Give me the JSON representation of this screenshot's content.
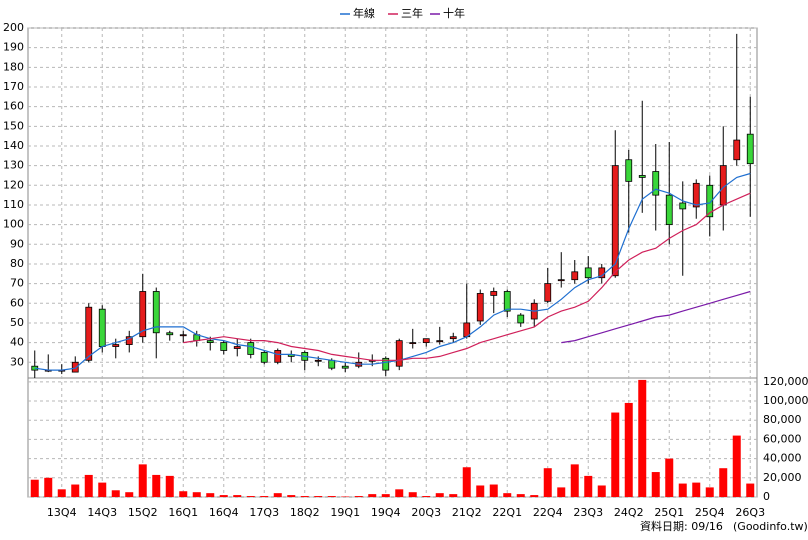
{
  "chart_data": {
    "type": "candlestick",
    "categories": [
      null,
      null,
      "13Q4",
      null,
      null,
      "14Q3",
      null,
      null,
      "15Q2",
      null,
      null,
      "16Q1",
      null,
      null,
      "16Q4",
      null,
      null,
      "17Q3",
      null,
      null,
      "18Q2",
      null,
      null,
      "19Q1",
      null,
      null,
      "19Q4",
      null,
      null,
      "20Q3",
      null,
      null,
      "21Q2",
      null,
      null,
      "22Q1",
      null,
      null,
      "22Q4",
      null,
      null,
      "23Q3",
      null,
      null,
      "24Q2",
      null,
      null,
      "25Q1",
      null,
      null,
      "25Q4",
      null,
      null,
      "26Q3"
    ],
    "open": [
      28,
      26,
      26,
      25,
      31,
      57,
      38,
      39,
      43,
      66,
      45,
      44,
      44,
      41,
      40,
      37,
      40,
      35,
      30,
      34,
      35,
      31,
      31,
      28,
      28,
      31,
      32,
      28,
      40,
      40,
      41,
      42,
      43,
      51,
      64,
      66,
      54,
      52,
      61,
      72,
      72,
      78,
      73,
      74,
      133,
      125,
      127,
      115,
      111,
      109,
      120,
      110,
      133,
      146
    ],
    "high": [
      36,
      34,
      29,
      33,
      60,
      59,
      42,
      46,
      75,
      68,
      46,
      46,
      46,
      43,
      41,
      42,
      42,
      36,
      37,
      36,
      36,
      33,
      32,
      30,
      35,
      34,
      33,
      42,
      47,
      42,
      48,
      45,
      70,
      67,
      68,
      67,
      55,
      62,
      78,
      86,
      82,
      84,
      80,
      148,
      138,
      163,
      141,
      142,
      122,
      123,
      125,
      150,
      197,
      165
    ],
    "low": [
      22,
      25,
      24,
      25,
      30,
      35,
      32,
      35,
      40,
      32,
      41,
      40,
      38,
      36,
      34,
      33,
      32,
      29,
      29,
      30,
      26,
      28,
      26,
      25,
      27,
      28,
      23,
      26,
      37,
      38,
      39,
      40,
      42,
      49,
      55,
      53,
      48,
      48,
      60,
      68,
      70,
      70,
      70,
      73,
      96,
      106,
      97,
      90,
      74,
      103,
      94,
      97,
      130,
      104
    ],
    "close": [
      26,
      26,
      26,
      30,
      58,
      38,
      39,
      43,
      66,
      45,
      44,
      44,
      41,
      40,
      36,
      38,
      34,
      30,
      36,
      33,
      31,
      31,
      27,
      27,
      30,
      31,
      26,
      41,
      40,
      42,
      41,
      43,
      50,
      65,
      66,
      56,
      50,
      60,
      70,
      72,
      76,
      73,
      78,
      130,
      122,
      124,
      115,
      100,
      108,
      121,
      104,
      130,
      143,
      131
    ],
    "up_color": "#e51c1c",
    "down_color": "#3ad63a",
    "series": [
      {
        "name": "年線",
        "color": "#1f6fd0",
        "values": [
          27,
          26,
          26,
          27,
          33,
          38,
          40,
          42,
          46,
          48,
          48,
          48,
          44,
          42,
          41,
          39,
          38,
          36,
          34,
          34,
          33,
          32,
          31,
          30,
          29,
          29,
          30,
          31,
          33,
          35,
          38,
          40,
          43,
          48,
          54,
          57,
          57,
          56,
          57,
          62,
          68,
          72,
          74,
          80,
          98,
          113,
          118,
          116,
          112,
          110,
          111,
          119,
          124,
          126
        ]
      },
      {
        "name": "三年",
        "color": "#d0205a",
        "values": [
          null,
          null,
          null,
          null,
          null,
          null,
          null,
          null,
          null,
          null,
          null,
          40,
          41,
          42,
          43,
          42,
          41,
          41,
          40,
          38,
          37,
          36,
          34,
          33,
          32,
          31,
          31,
          31,
          32,
          32,
          33,
          35,
          37,
          40,
          42,
          44,
          46,
          48,
          53,
          56,
          58,
          61,
          68,
          76,
          82,
          86,
          88,
          93,
          97,
          100,
          106,
          110,
          113,
          116
        ]
      },
      {
        "name": "十年",
        "color": "#7a1aa8",
        "values": [
          null,
          null,
          null,
          null,
          null,
          null,
          null,
          null,
          null,
          null,
          null,
          null,
          null,
          null,
          null,
          null,
          null,
          null,
          null,
          null,
          null,
          null,
          null,
          null,
          null,
          null,
          null,
          null,
          null,
          null,
          null,
          null,
          null,
          null,
          null,
          null,
          null,
          null,
          null,
          40,
          41,
          43,
          45,
          47,
          49,
          51,
          53,
          54,
          56,
          58,
          60,
          62,
          64,
          66
        ]
      }
    ],
    "ylim": [
      22,
      200
    ],
    "yticks": [
      30,
      40,
      50,
      60,
      70,
      80,
      90,
      100,
      110,
      120,
      130,
      140,
      150,
      160,
      170,
      180,
      190,
      200
    ],
    "volume": {
      "color": "#ff0000",
      "values": [
        18000,
        20000,
        8000,
        13000,
        23000,
        15000,
        7000,
        5000,
        34000,
        23000,
        22000,
        6000,
        5000,
        4000,
        2000,
        2000,
        1000,
        1000,
        4000,
        2000,
        1000,
        1000,
        1000,
        500,
        1000,
        3000,
        3000,
        8000,
        5000,
        1000,
        4000,
        3000,
        31000,
        12000,
        13000,
        4000,
        3000,
        2000,
        30000,
        10000,
        34000,
        22000,
        12000,
        88000,
        98000,
        122000,
        26000,
        40000,
        14000,
        15000,
        10000,
        30000,
        64000,
        14000
      ],
      "ylim": [
        0,
        124000
      ],
      "yticks": [
        0,
        {
          "value": 20000,
          "label": "20,000"
        },
        {
          "value": 40000,
          "label": "40,000"
        },
        {
          "value": 60000,
          "label": "60,000"
        },
        {
          "value": 80000,
          "label": "80,000"
        },
        {
          "value": 100000,
          "label": "100,000"
        },
        {
          "value": 120000,
          "label": "120,000"
        }
      ]
    },
    "grid": true,
    "source_date": "資料日期: 09/16",
    "source": "(Goodinfo.tw)"
  }
}
